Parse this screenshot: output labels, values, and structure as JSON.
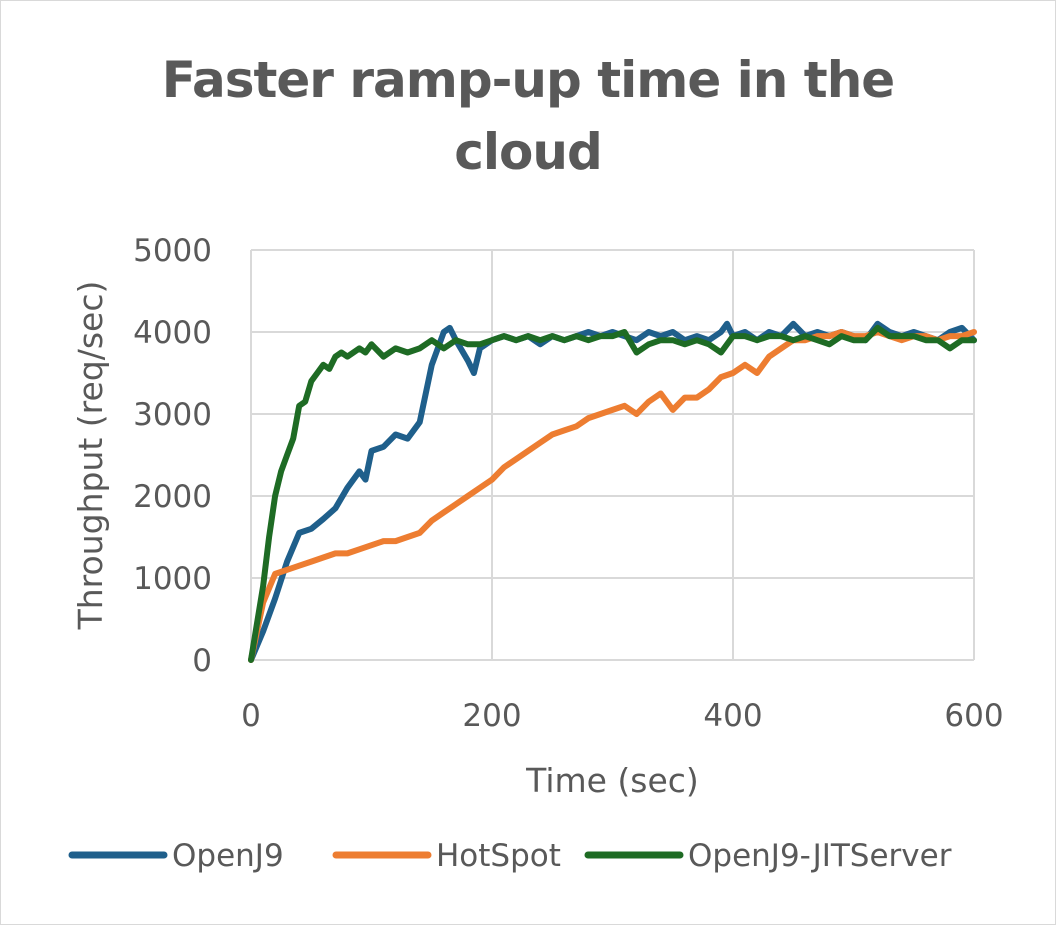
{
  "chart_data": {
    "type": "line",
    "title": "Faster ramp-up time in the cloud",
    "xlabel": "Time (sec)",
    "ylabel": "Throughput (req/sec)",
    "xlim": [
      0,
      600
    ],
    "ylim": [
      0,
      5000
    ],
    "x_ticks": [
      "0",
      "200",
      "400",
      "600"
    ],
    "y_ticks": [
      "0",
      "1000",
      "2000",
      "3000",
      "4000",
      "5000"
    ],
    "grid": true,
    "legend_position": "bottom",
    "series": [
      {
        "name": "OpenJ9",
        "color": "#1f5f8b",
        "points": [
          [
            0,
            0
          ],
          [
            10,
            350
          ],
          [
            20,
            750
          ],
          [
            30,
            1200
          ],
          [
            40,
            1550
          ],
          [
            50,
            1600
          ],
          [
            60,
            1720
          ],
          [
            70,
            1850
          ],
          [
            80,
            2100
          ],
          [
            90,
            2300
          ],
          [
            95,
            2200
          ],
          [
            100,
            2550
          ],
          [
            110,
            2600
          ],
          [
            120,
            2750
          ],
          [
            130,
            2700
          ],
          [
            140,
            2900
          ],
          [
            150,
            3600
          ],
          [
            160,
            4000
          ],
          [
            165,
            4050
          ],
          [
            170,
            3900
          ],
          [
            180,
            3650
          ],
          [
            185,
            3500
          ],
          [
            190,
            3800
          ],
          [
            200,
            3900
          ],
          [
            210,
            3950
          ],
          [
            220,
            3900
          ],
          [
            230,
            3950
          ],
          [
            240,
            3850
          ],
          [
            250,
            3950
          ],
          [
            260,
            3900
          ],
          [
            270,
            3950
          ],
          [
            280,
            4000
          ],
          [
            290,
            3950
          ],
          [
            300,
            4000
          ],
          [
            310,
            3950
          ],
          [
            320,
            3900
          ],
          [
            330,
            4000
          ],
          [
            340,
            3950
          ],
          [
            350,
            4000
          ],
          [
            360,
            3900
          ],
          [
            370,
            3950
          ],
          [
            380,
            3900
          ],
          [
            390,
            4000
          ],
          [
            395,
            4100
          ],
          [
            400,
            3950
          ],
          [
            410,
            4000
          ],
          [
            420,
            3900
          ],
          [
            430,
            4000
          ],
          [
            440,
            3950
          ],
          [
            450,
            4100
          ],
          [
            460,
            3950
          ],
          [
            470,
            4000
          ],
          [
            480,
            3950
          ],
          [
            490,
            4000
          ],
          [
            500,
            3950
          ],
          [
            510,
            3900
          ],
          [
            520,
            4100
          ],
          [
            530,
            4000
          ],
          [
            540,
            3950
          ],
          [
            550,
            4000
          ],
          [
            560,
            3950
          ],
          [
            570,
            3900
          ],
          [
            580,
            4000
          ],
          [
            590,
            4050
          ],
          [
            600,
            3900
          ]
        ]
      },
      {
        "name": "HotSpot",
        "color": "#ed7d31",
        "points": [
          [
            0,
            0
          ],
          [
            10,
            700
          ],
          [
            20,
            1050
          ],
          [
            30,
            1100
          ],
          [
            40,
            1150
          ],
          [
            50,
            1200
          ],
          [
            60,
            1250
          ],
          [
            70,
            1300
          ],
          [
            80,
            1300
          ],
          [
            90,
            1350
          ],
          [
            100,
            1400
          ],
          [
            110,
            1450
          ],
          [
            120,
            1450
          ],
          [
            130,
            1500
          ],
          [
            140,
            1550
          ],
          [
            150,
            1700
          ],
          [
            160,
            1800
          ],
          [
            170,
            1900
          ],
          [
            180,
            2000
          ],
          [
            190,
            2100
          ],
          [
            200,
            2200
          ],
          [
            210,
            2350
          ],
          [
            220,
            2450
          ],
          [
            230,
            2550
          ],
          [
            240,
            2650
          ],
          [
            250,
            2750
          ],
          [
            260,
            2800
          ],
          [
            270,
            2850
          ],
          [
            280,
            2950
          ],
          [
            290,
            3000
          ],
          [
            300,
            3050
          ],
          [
            310,
            3100
          ],
          [
            320,
            3000
          ],
          [
            330,
            3150
          ],
          [
            340,
            3250
          ],
          [
            350,
            3050
          ],
          [
            360,
            3200
          ],
          [
            370,
            3200
          ],
          [
            380,
            3300
          ],
          [
            390,
            3450
          ],
          [
            400,
            3500
          ],
          [
            410,
            3600
          ],
          [
            420,
            3500
          ],
          [
            430,
            3700
          ],
          [
            440,
            3800
          ],
          [
            450,
            3900
          ],
          [
            460,
            3900
          ],
          [
            470,
            3950
          ],
          [
            480,
            3950
          ],
          [
            490,
            4000
          ],
          [
            500,
            3950
          ],
          [
            510,
            3950
          ],
          [
            520,
            4000
          ],
          [
            530,
            3950
          ],
          [
            540,
            3900
          ],
          [
            550,
            3950
          ],
          [
            560,
            3950
          ],
          [
            570,
            3900
          ],
          [
            580,
            3950
          ],
          [
            590,
            3950
          ],
          [
            600,
            4000
          ]
        ]
      },
      {
        "name": "OpenJ9-JITServer",
        "color": "#1e6b24",
        "points": [
          [
            0,
            0
          ],
          [
            10,
            900
          ],
          [
            15,
            1500
          ],
          [
            20,
            2000
          ],
          [
            25,
            2300
          ],
          [
            30,
            2500
          ],
          [
            35,
            2700
          ],
          [
            40,
            3100
          ],
          [
            45,
            3150
          ],
          [
            50,
            3400
          ],
          [
            55,
            3500
          ],
          [
            60,
            3600
          ],
          [
            65,
            3550
          ],
          [
            70,
            3700
          ],
          [
            75,
            3750
          ],
          [
            80,
            3700
          ],
          [
            90,
            3800
          ],
          [
            95,
            3750
          ],
          [
            100,
            3850
          ],
          [
            110,
            3700
          ],
          [
            120,
            3800
          ],
          [
            130,
            3750
          ],
          [
            140,
            3800
          ],
          [
            150,
            3900
          ],
          [
            160,
            3800
          ],
          [
            170,
            3900
          ],
          [
            180,
            3850
          ],
          [
            190,
            3850
          ],
          [
            200,
            3900
          ],
          [
            210,
            3950
          ],
          [
            220,
            3900
          ],
          [
            230,
            3950
          ],
          [
            240,
            3900
          ],
          [
            250,
            3950
          ],
          [
            260,
            3900
          ],
          [
            270,
            3950
          ],
          [
            280,
            3900
          ],
          [
            290,
            3950
          ],
          [
            300,
            3950
          ],
          [
            310,
            4000
          ],
          [
            320,
            3750
          ],
          [
            330,
            3850
          ],
          [
            340,
            3900
          ],
          [
            350,
            3900
          ],
          [
            360,
            3850
          ],
          [
            370,
            3900
          ],
          [
            380,
            3850
          ],
          [
            390,
            3750
          ],
          [
            400,
            3950
          ],
          [
            410,
            3950
          ],
          [
            420,
            3900
          ],
          [
            430,
            3950
          ],
          [
            440,
            3950
          ],
          [
            450,
            3900
          ],
          [
            460,
            3950
          ],
          [
            470,
            3900
          ],
          [
            480,
            3850
          ],
          [
            490,
            3950
          ],
          [
            500,
            3900
          ],
          [
            510,
            3900
          ],
          [
            520,
            4050
          ],
          [
            530,
            3950
          ],
          [
            540,
            3950
          ],
          [
            550,
            3950
          ],
          [
            560,
            3900
          ],
          [
            570,
            3900
          ],
          [
            580,
            3800
          ],
          [
            590,
            3900
          ],
          [
            600,
            3900
          ]
        ]
      }
    ]
  }
}
